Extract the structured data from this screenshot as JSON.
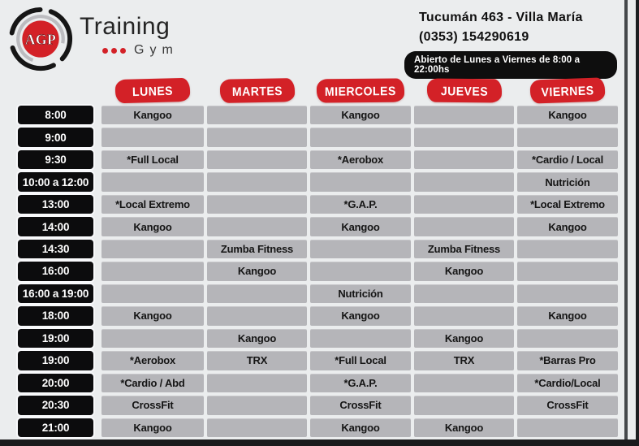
{
  "header": {
    "logo": {
      "abbr": "AGP",
      "title": "Training",
      "subtitle": "Gym"
    },
    "address": "Tucumán 463 - Villa María",
    "phone": "(0353) 154290619",
    "hours_badge": "Abierto de Lunes a Viernes de 8:00 a 22:00hs"
  },
  "colors": {
    "accent_red": "#d32127",
    "cell_gray": "#b5b5b9",
    "time_black": "#0c0c0d",
    "background": "#ebedee"
  },
  "schedule": {
    "days": [
      "LUNES",
      "MARTES",
      "MIERCOLES",
      "JUEVES",
      "VIERNES"
    ],
    "rows": [
      {
        "time": "8:00",
        "cells": [
          "Kangoo",
          "",
          "Kangoo",
          "",
          "Kangoo"
        ]
      },
      {
        "time": "9:00",
        "cells": [
          "",
          "",
          "",
          "",
          ""
        ]
      },
      {
        "time": "9:30",
        "cells": [
          "*Full Local",
          "",
          "*Aerobox",
          "",
          "*Cardio / Local"
        ]
      },
      {
        "time": "10:00 a 12:00",
        "cells": [
          "",
          "",
          "",
          "",
          "Nutrición"
        ]
      },
      {
        "time": "13:00",
        "cells": [
          "*Local Extremo",
          "",
          "*G.A.P.",
          "",
          "*Local Extremo"
        ]
      },
      {
        "time": "14:00",
        "cells": [
          "Kangoo",
          "",
          "Kangoo",
          "",
          "Kangoo"
        ]
      },
      {
        "time": "14:30",
        "cells": [
          "",
          "Zumba Fitness",
          "",
          "Zumba Fitness",
          ""
        ]
      },
      {
        "time": "16:00",
        "cells": [
          "",
          "Kangoo",
          "",
          "Kangoo",
          ""
        ]
      },
      {
        "time": "16:00 a 19:00",
        "cells": [
          "",
          "",
          "Nutrición",
          "",
          ""
        ]
      },
      {
        "time": "18:00",
        "cells": [
          "Kangoo",
          "",
          "Kangoo",
          "",
          "Kangoo"
        ]
      },
      {
        "time": "19:00",
        "cells": [
          "",
          "Kangoo",
          "",
          "Kangoo",
          ""
        ]
      },
      {
        "time": "19:00",
        "cells": [
          "*Aerobox",
          "TRX",
          "*Full Local",
          "TRX",
          "*Barras Pro"
        ]
      },
      {
        "time": "20:00",
        "cells": [
          "*Cardio / Abd",
          "",
          "*G.A.P.",
          "",
          "*Cardio/Local"
        ]
      },
      {
        "time": "20:30",
        "cells": [
          "CrossFit",
          "",
          "CrossFit",
          "",
          "CrossFit"
        ]
      },
      {
        "time": "21:00",
        "cells": [
          "Kangoo",
          "",
          "Kangoo",
          "Kangoo",
          ""
        ]
      }
    ]
  }
}
